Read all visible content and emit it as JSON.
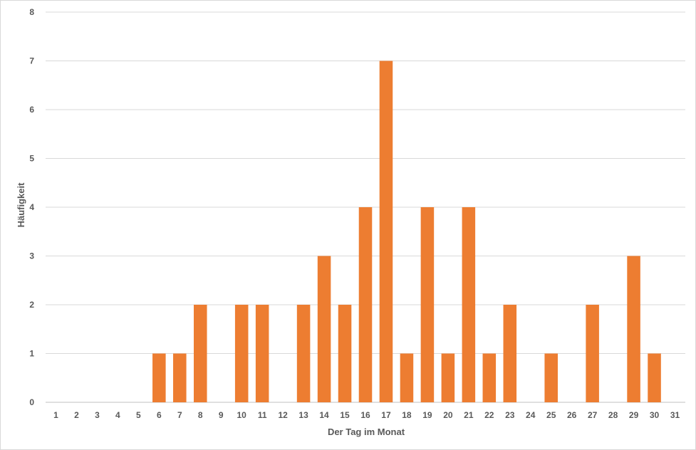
{
  "chart_data": {
    "type": "bar",
    "title": "",
    "xlabel": "Der Tag im Monat",
    "ylabel": "Häufigkeit",
    "categories": [
      "1",
      "2",
      "3",
      "4",
      "5",
      "6",
      "7",
      "8",
      "9",
      "10",
      "11",
      "12",
      "13",
      "14",
      "15",
      "16",
      "17",
      "18",
      "19",
      "20",
      "21",
      "22",
      "23",
      "24",
      "25",
      "26",
      "27",
      "28",
      "29",
      "30",
      "31"
    ],
    "values": [
      0,
      0,
      0,
      0,
      0,
      1,
      1,
      2,
      0,
      2,
      2,
      0,
      2,
      3,
      2,
      4,
      7,
      1,
      4,
      1,
      4,
      1,
      2,
      0,
      1,
      0,
      2,
      0,
      3,
      1,
      0
    ],
    "y_ticks": [
      "0",
      "1",
      "2",
      "3",
      "4",
      "5",
      "6",
      "7",
      "8"
    ],
    "ylim": [
      0,
      8
    ],
    "grid": true,
    "legend": "none",
    "colors": {
      "bar": "#ED7D31",
      "grid": "#d9d9d9",
      "axis": "#bfbfbf",
      "text": "#595959"
    }
  }
}
